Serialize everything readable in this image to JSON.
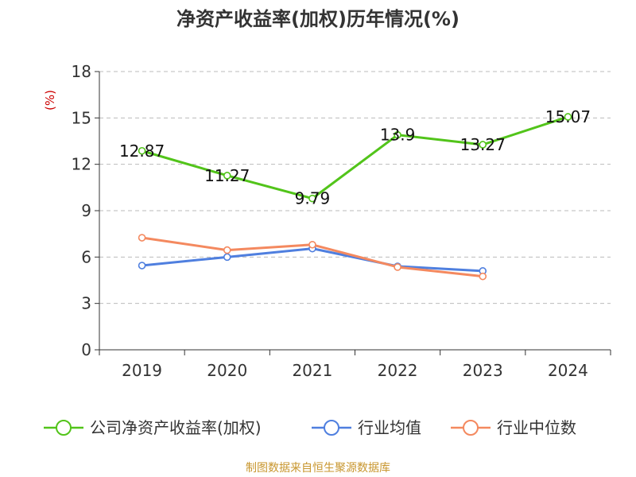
{
  "chart_data": {
    "type": "line",
    "title": "净资产收益率(加权)历年情况(%)",
    "ylabel": "(%)",
    "xlabel": "",
    "categories": [
      "2019",
      "2020",
      "2021",
      "2022",
      "2023",
      "2024"
    ],
    "yticks": [
      0,
      3,
      6,
      9,
      12,
      15,
      18
    ],
    "ylim": [
      0,
      18
    ],
    "grid": true,
    "legend_position": "bottom",
    "series": [
      {
        "name": "公司净资产收益率(加权)",
        "color": "#52c41a",
        "values": [
          12.87,
          11.27,
          9.79,
          13.9,
          13.27,
          15.07
        ],
        "labels": [
          "12.87",
          "11.27",
          "9.79",
          "13.9",
          "13.27",
          "15.07"
        ]
      },
      {
        "name": "行业均值",
        "color": "#4f7fdf",
        "values": [
          5.45,
          6.0,
          6.55,
          5.4,
          5.1,
          null
        ]
      },
      {
        "name": "行业中位数",
        "color": "#f4895f",
        "values": [
          7.25,
          6.45,
          6.8,
          5.35,
          4.75,
          null
        ]
      }
    ]
  },
  "source": "制图数据来自恒生聚源数据库"
}
